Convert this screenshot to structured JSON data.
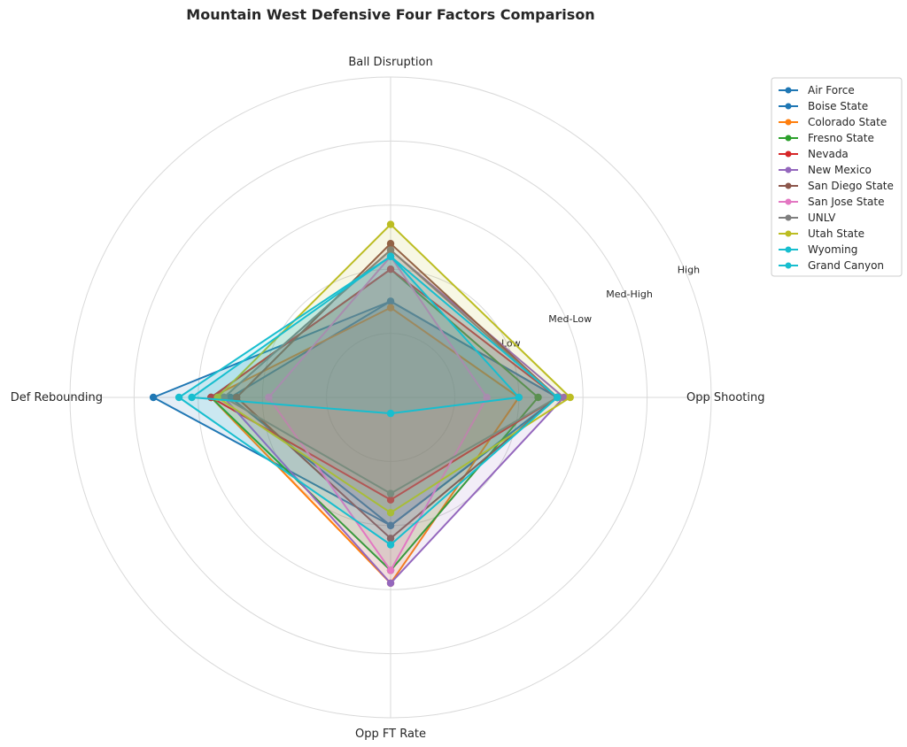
{
  "chart_data": {
    "type": "radar",
    "title": "Mountain West Defensive Four Factors Comparison",
    "axes": [
      "Ball Disruption",
      "Opp Shooting",
      "Opp FT Rate",
      "Def Rebounding"
    ],
    "rlim": [
      0,
      5
    ],
    "rings": [
      {
        "value": 1,
        "label": ""
      },
      {
        "value": 2,
        "label": "Low"
      },
      {
        "value": 3,
        "label": "Med-Low"
      },
      {
        "value": 4,
        "label": "Med-High"
      },
      {
        "value": 5,
        "label": "High"
      }
    ],
    "grid": true,
    "legend_position": "right",
    "series": [
      {
        "name": "Air Force",
        "color": "#1f77b4",
        "values": [
          1.5,
          2.6,
          2.0,
          3.7
        ]
      },
      {
        "name": "Boise State",
        "color": "#1f77b4",
        "values": [
          1.5,
          2.6,
          2.0,
          2.5
        ]
      },
      {
        "name": "Colorado State",
        "color": "#ff7f0e",
        "values": [
          1.4,
          2.0,
          2.9,
          2.8
        ]
      },
      {
        "name": "Fresno State",
        "color": "#2ca02c",
        "values": [
          2.0,
          2.3,
          2.7,
          2.8
        ]
      },
      {
        "name": "Nevada",
        "color": "#d62728",
        "values": [
          2.0,
          2.6,
          1.6,
          2.8
        ]
      },
      {
        "name": "New Mexico",
        "color": "#9467bd",
        "values": [
          2.3,
          2.7,
          2.9,
          2.6
        ]
      },
      {
        "name": "San Diego State",
        "color": "#8c564b",
        "values": [
          2.4,
          2.6,
          2.2,
          2.4
        ]
      },
      {
        "name": "San Jose State",
        "color": "#e377c2",
        "values": [
          2.2,
          1.5,
          2.7,
          1.9
        ]
      },
      {
        "name": "UNLV",
        "color": "#7f7f7f",
        "values": [
          2.3,
          2.6,
          1.5,
          2.6
        ]
      },
      {
        "name": "Utah State",
        "color": "#bcbd22",
        "values": [
          2.7,
          2.8,
          1.8,
          2.7
        ]
      },
      {
        "name": "Wyoming",
        "color": "#17becf",
        "values": [
          2.2,
          2.6,
          2.3,
          3.3
        ]
      },
      {
        "name": "Grand Canyon",
        "color": "#17becf",
        "values": [
          2.2,
          2.0,
          0.25,
          3.1
        ]
      }
    ]
  }
}
